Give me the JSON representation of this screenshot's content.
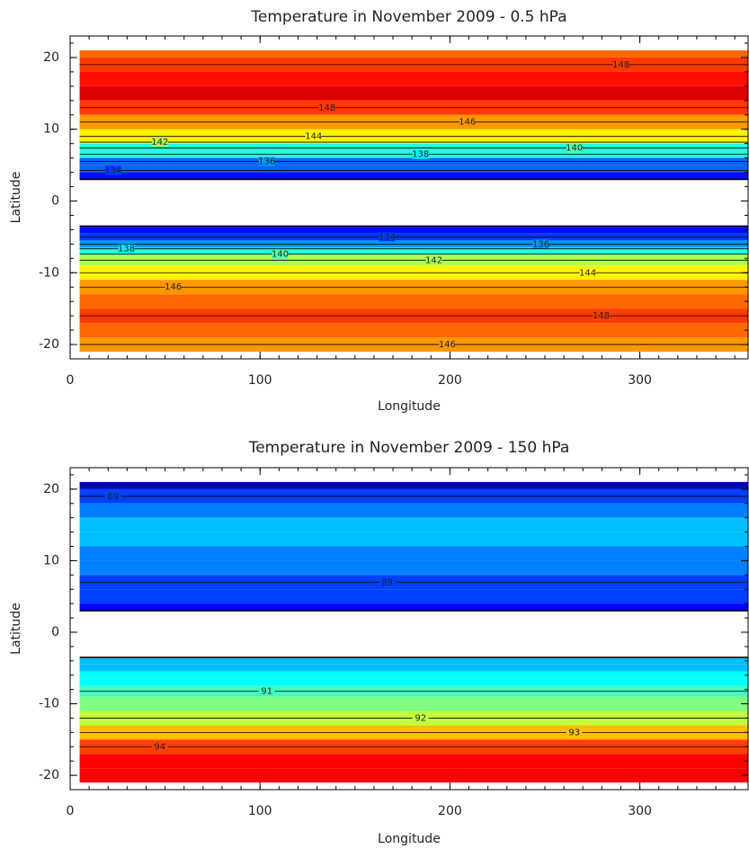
{
  "chart_data": [
    {
      "type": "heatmap",
      "title": "Temperature in November 2009 - 0.5 hPa",
      "x_label": "Longitude",
      "y_label": "Latitude",
      "xlim": [
        0,
        357
      ],
      "ylim": [
        -22,
        23
      ],
      "xticks": [
        0,
        100,
        200,
        300
      ],
      "yticks": [
        -20,
        -10,
        0,
        10,
        20
      ],
      "lon_extent": [
        5,
        357
      ],
      "latitude_bins": [
        21,
        20,
        18,
        16,
        14,
        12,
        10,
        8,
        6,
        4,
        3,
        -3.5,
        -4.5,
        -5.5,
        -6.5,
        -7.5,
        -9,
        -11,
        -13,
        -15,
        -17,
        -19,
        -21
      ],
      "values": [
        147,
        148,
        149,
        150,
        148,
        146,
        144,
        139,
        135,
        133,
        null,
        133,
        134,
        136,
        139,
        142,
        144,
        146,
        147,
        148,
        147,
        146
      ],
      "colormap": "jet",
      "clim": [
        130,
        152
      ],
      "contour_levels": [
        134,
        136,
        138,
        140,
        142,
        144,
        146,
        148
      ]
    },
    {
      "type": "heatmap",
      "title": "Temperature in November 2009 - 150 hPa",
      "x_label": "Longitude",
      "y_label": "Latitude",
      "xlim": [
        0,
        357
      ],
      "ylim": [
        -22,
        23
      ],
      "xticks": [
        0,
        100,
        200,
        300
      ],
      "yticks": [
        -20,
        -10,
        0,
        10,
        20
      ],
      "lon_extent": [
        5,
        357
      ],
      "latitude_bins": [
        21,
        20,
        18,
        16,
        14,
        12,
        10,
        8,
        6,
        4,
        3,
        -3.5,
        -4.5,
        -5.5,
        -6.5,
        -7.5,
        -9,
        -11,
        -13,
        -15,
        -17,
        -19,
        -21
      ],
      "values": [
        88,
        89,
        89.5,
        90,
        90,
        89.5,
        89.5,
        89,
        89,
        88.5,
        null,
        90,
        90,
        90.5,
        90.5,
        91,
        91.5,
        92,
        93,
        94,
        94.5,
        94.5
      ],
      "colormap": "jet",
      "clim": [
        87.5,
        95.5
      ],
      "contour_levels": [
        89,
        91,
        92,
        93,
        94
      ]
    }
  ]
}
